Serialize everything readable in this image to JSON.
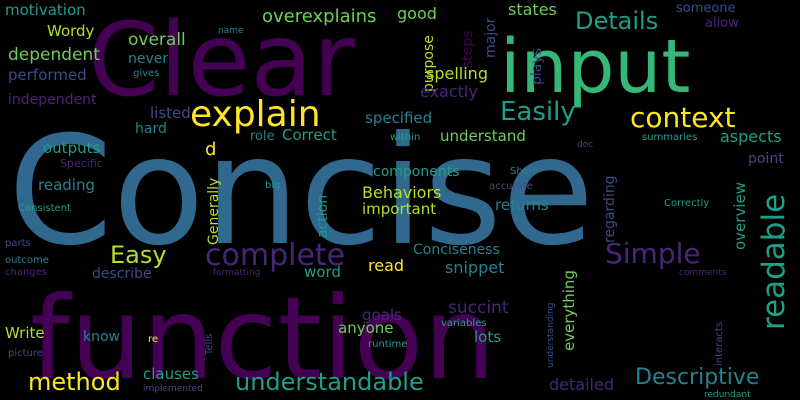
{
  "palette": {
    "background": "#000000",
    "dark_purple": "#440154",
    "purple": "#482677",
    "indigo": "#3e4a89",
    "blue": "#31688e",
    "teal": "#26828e",
    "teal_green": "#1f9e89",
    "green": "#35b779",
    "light_green": "#6ece58",
    "lime": "#b5de2b",
    "yellow": "#fde725"
  },
  "words": [
    {
      "text": "Concise",
      "color": "blue"
    },
    {
      "text": "function",
      "color": "dark_purple"
    },
    {
      "text": "Clear",
      "color": "dark_purple"
    },
    {
      "text": "input",
      "color": "green"
    },
    {
      "text": "explain",
      "color": "yellow"
    },
    {
      "text": "Easily",
      "color": "teal_green"
    },
    {
      "text": "context",
      "color": "yellow"
    },
    {
      "text": "complete",
      "color": "purple"
    },
    {
      "text": "Simple",
      "color": "purple"
    },
    {
      "text": "readable",
      "color": "teal_green"
    },
    {
      "text": "Easy",
      "color": "lime"
    },
    {
      "text": "method",
      "color": "yellow"
    },
    {
      "text": "understandable",
      "color": "teal_green"
    },
    {
      "text": "Descriptive",
      "color": "teal"
    },
    {
      "text": "Details",
      "color": "teal_green"
    },
    {
      "text": "overexplains",
      "color": "light_green"
    },
    {
      "text": "good",
      "color": "light_green"
    },
    {
      "text": "states",
      "color": "light_green"
    },
    {
      "text": "someone",
      "color": "indigo"
    },
    {
      "text": "allow",
      "color": "purple"
    },
    {
      "text": "motivation",
      "color": "teal_green"
    },
    {
      "text": "Wordy",
      "color": "lime"
    },
    {
      "text": "dependent",
      "color": "light_green"
    },
    {
      "text": "overall",
      "color": "light_green"
    },
    {
      "text": "performed",
      "color": "indigo"
    },
    {
      "text": "never",
      "color": "teal"
    },
    {
      "text": "gives",
      "color": "teal"
    },
    {
      "text": "name",
      "color": "teal"
    },
    {
      "text": "independent",
      "color": "purple"
    },
    {
      "text": "purpose",
      "color": "lime"
    },
    {
      "text": "steps",
      "color": "dark_purple"
    },
    {
      "text": "major",
      "color": "indigo"
    },
    {
      "text": "spelling",
      "color": "lime"
    },
    {
      "text": "plays",
      "color": "indigo"
    },
    {
      "text": "exactly",
      "color": "purple"
    },
    {
      "text": "listed",
      "color": "indigo"
    },
    {
      "text": "hard",
      "color": "teal"
    },
    {
      "text": "specified",
      "color": "teal"
    },
    {
      "text": "understand",
      "color": "light_green"
    },
    {
      "text": "role",
      "color": "teal"
    },
    {
      "text": "Correct",
      "color": "teal_green"
    },
    {
      "text": "within",
      "color": "teal_green"
    },
    {
      "text": "doc",
      "color": "indigo"
    },
    {
      "text": "summaries",
      "color": "teal_green"
    },
    {
      "text": "aspects",
      "color": "teal_green"
    },
    {
      "text": "outputs",
      "color": "teal_green"
    },
    {
      "text": "Specific",
      "color": "purple"
    },
    {
      "text": "d",
      "color": "yellow"
    },
    {
      "text": "components",
      "color": "teal_green"
    },
    {
      "text": "point",
      "color": "indigo"
    },
    {
      "text": "overview",
      "color": "teal_green"
    },
    {
      "text": "regarding",
      "color": "indigo"
    },
    {
      "text": "Short",
      "color": "teal"
    },
    {
      "text": "reading",
      "color": "teal"
    },
    {
      "text": "Behaviors",
      "color": "lime"
    },
    {
      "text": "important",
      "color": "lime"
    },
    {
      "text": "returns",
      "color": "teal"
    },
    {
      "text": "accurate",
      "color": "indigo"
    },
    {
      "text": "big",
      "color": "teal_green"
    },
    {
      "text": "Consistent",
      "color": "teal_green"
    },
    {
      "text": "Generally",
      "color": "lime"
    },
    {
      "text": "action",
      "color": "teal_green"
    },
    {
      "text": "Correctly",
      "color": "teal_green"
    },
    {
      "text": "parts",
      "color": "indigo"
    },
    {
      "text": "Conciseness",
      "color": "teal"
    },
    {
      "text": "outcome",
      "color": "teal"
    },
    {
      "text": "changes",
      "color": "purple"
    },
    {
      "text": "describe",
      "color": "indigo"
    },
    {
      "text": "formatting",
      "color": "purple"
    },
    {
      "text": "word",
      "color": "teal_green"
    },
    {
      "text": "read",
      "color": "yellow"
    },
    {
      "text": "snippet",
      "color": "teal"
    },
    {
      "text": "comments",
      "color": "purple"
    },
    {
      "text": "succint",
      "color": "purple"
    },
    {
      "text": "everything",
      "color": "light_green"
    },
    {
      "text": "goals",
      "color": "purple"
    },
    {
      "text": "Write",
      "color": "lime"
    },
    {
      "text": "know",
      "color": "teal"
    },
    {
      "text": "re",
      "color": "yellow"
    },
    {
      "text": "anyone",
      "color": "light_green"
    },
    {
      "text": "lots",
      "color": "teal_green"
    },
    {
      "text": "variables",
      "color": "teal_green"
    },
    {
      "text": "runtime",
      "color": "teal_green"
    },
    {
      "text": "picture",
      "color": "indigo"
    },
    {
      "text": "Tells",
      "color": "indigo"
    },
    {
      "text": "understanding",
      "color": "indigo"
    },
    {
      "text": "interacts",
      "color": "indigo"
    },
    {
      "text": "implemented",
      "color": "indigo"
    },
    {
      "text": "clauses",
      "color": "teal_green"
    },
    {
      "text": "detailed",
      "color": "purple"
    },
    {
      "text": "redundant",
      "color": "teal_green"
    }
  ]
}
